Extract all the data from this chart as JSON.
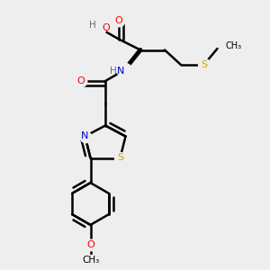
{
  "bg_color": "#eeeeee",
  "bond_color": "#000000",
  "bond_width": 1.8,
  "figsize": [
    3.0,
    3.0
  ],
  "dpi": 100,
  "colors": {
    "O": "#ff0000",
    "N": "#0000cc",
    "S": "#ccaa00",
    "S_met": "#ccaa00",
    "C": "#000000",
    "H": "#607070",
    "bond": "#000000"
  },
  "layout": {
    "xlim": [
      0.0,
      1.0
    ],
    "ylim": [
      0.0,
      1.0
    ]
  }
}
